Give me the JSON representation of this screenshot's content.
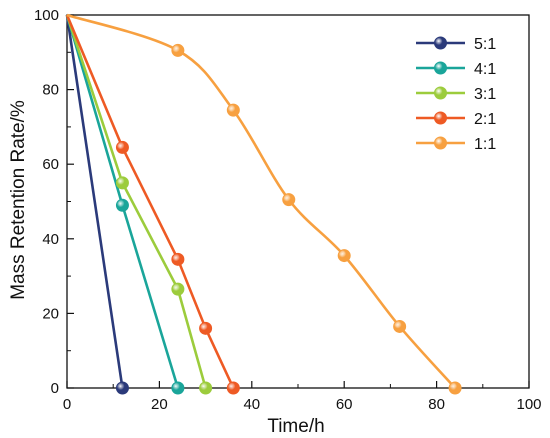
{
  "chart_data": {
    "type": "line",
    "title": "",
    "xlabel": "Time/h",
    "ylabel": "Mass Retention Rate/%",
    "xlim": [
      0,
      100
    ],
    "ylim": [
      0,
      100
    ],
    "xticks": [
      0,
      20,
      40,
      60,
      80,
      100
    ],
    "yticks": [
      0,
      20,
      40,
      60,
      80,
      100
    ],
    "grid": false,
    "legend_position": "top-right",
    "series": [
      {
        "name": "5:1",
        "color": "#2b3a7a",
        "smooth": false,
        "x": [
          0,
          12
        ],
        "y": [
          100,
          0
        ]
      },
      {
        "name": "4:1",
        "color": "#1aa59a",
        "smooth": false,
        "x": [
          0,
          12,
          24
        ],
        "y": [
          100,
          49,
          0
        ]
      },
      {
        "name": "3:1",
        "color": "#9ccc3c",
        "smooth": false,
        "x": [
          0,
          12,
          24,
          30
        ],
        "y": [
          100,
          55,
          26.5,
          0
        ]
      },
      {
        "name": "2:1",
        "color": "#ee5a24",
        "smooth": false,
        "x": [
          0,
          12,
          24,
          30,
          36
        ],
        "y": [
          100,
          64.5,
          34.5,
          16,
          0
        ]
      },
      {
        "name": "1:1",
        "color": "#f7a040",
        "smooth": true,
        "x": [
          0,
          24,
          36,
          48,
          60,
          72,
          84
        ],
        "y": [
          100,
          90.5,
          74.5,
          50.5,
          35.5,
          16.5,
          0
        ]
      }
    ]
  }
}
